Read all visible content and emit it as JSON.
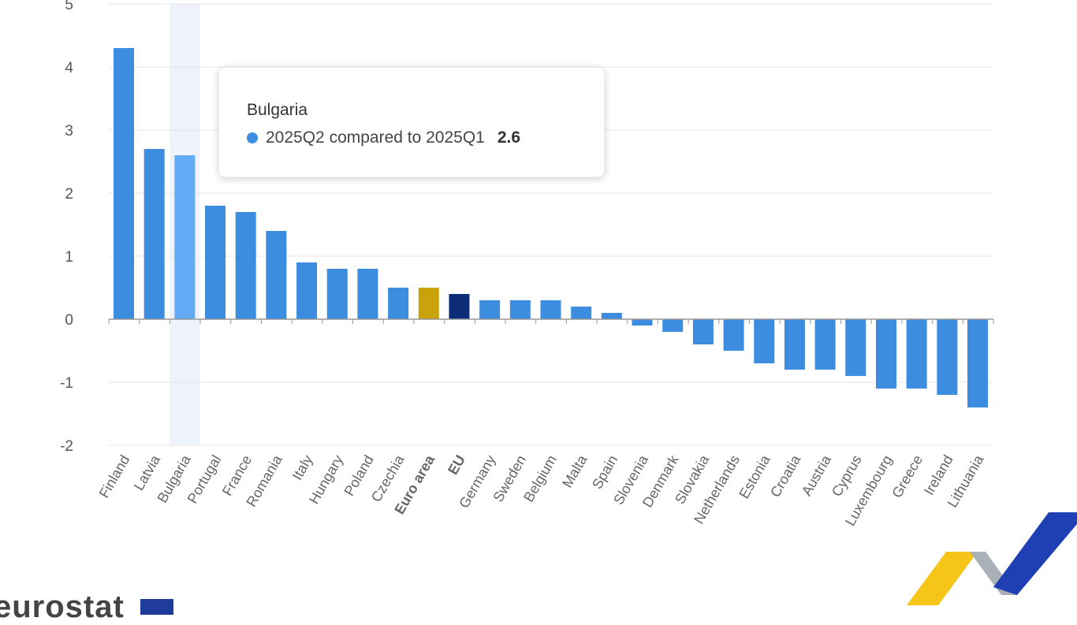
{
  "chart_data": {
    "type": "bar",
    "title": "",
    "xlabel": "",
    "ylabel": "",
    "ylim": [
      -2,
      5
    ],
    "yticks": [
      -2,
      -1,
      0,
      1,
      2,
      3,
      4,
      5
    ],
    "grid": true,
    "categories": [
      "Finland",
      "Latvia",
      "Bulgaria",
      "Portugal",
      "France",
      "Romania",
      "Italy",
      "Hungary",
      "Poland",
      "Czechia",
      "Euro area",
      "EU",
      "Germany",
      "Sweden",
      "Belgium",
      "Malta",
      "Spain",
      "Slovenia",
      "Denmark",
      "Slovakia",
      "Netherlands",
      "Estonia",
      "Croatia",
      "Austria",
      "Cyprus",
      "Luxembourg",
      "Greece",
      "Ireland",
      "Lithuania"
    ],
    "series": [
      {
        "name": "2025Q2 compared to 2025Q1",
        "values": [
          4.3,
          2.7,
          2.6,
          1.8,
          1.7,
          1.4,
          0.9,
          0.8,
          0.8,
          0.5,
          0.5,
          0.4,
          0.3,
          0.3,
          0.3,
          0.2,
          0.1,
          -0.1,
          -0.2,
          -0.4,
          -0.5,
          -0.7,
          -0.8,
          -0.8,
          -0.9,
          -1.1,
          -1.1,
          -1.2,
          -1.4
        ]
      }
    ],
    "bold_categories": [
      "Euro area",
      "EU"
    ],
    "highlighted": "Bulgaria",
    "colors": {
      "default": "#3c8de0",
      "hover": "#63aaf5",
      "Euro area": "#c9a20c",
      "EU": "#0e2d78",
      "band": "#eef3fb"
    }
  },
  "tooltip": {
    "title": "Bulgaria",
    "series": "2025Q2 compared to 2025Q1",
    "value": "2.6"
  },
  "logo": {
    "text": "eurostat"
  }
}
